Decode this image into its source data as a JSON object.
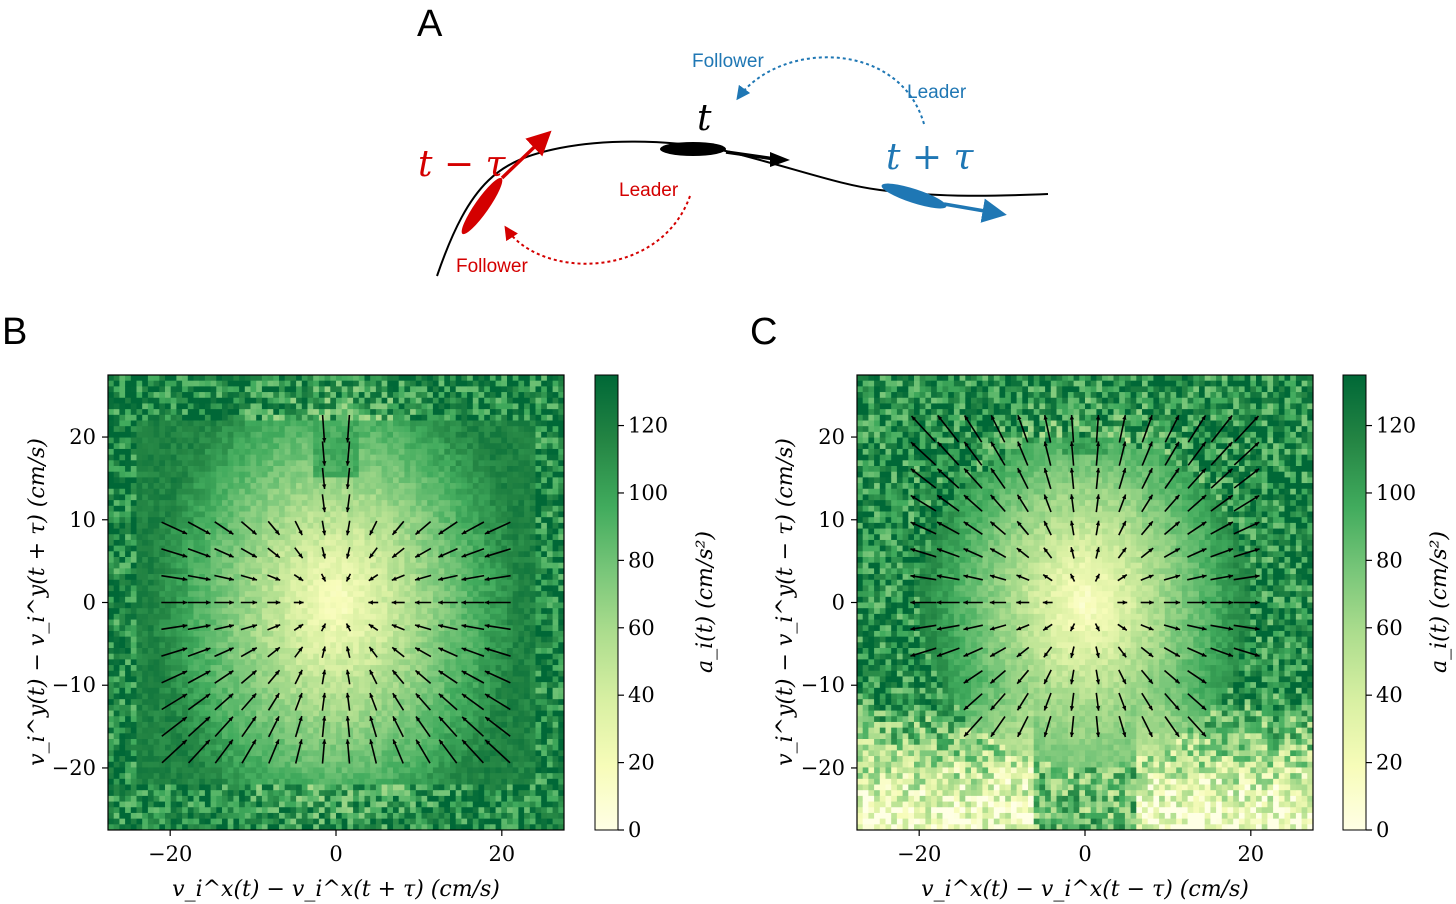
{
  "panel_a": {
    "letter": "A",
    "time_labels": {
      "past": "t − τ",
      "present": "t",
      "future": "t + τ"
    },
    "red_labels": {
      "leader": "Leader",
      "follower": "Follower"
    },
    "blue_labels": {
      "leader": "Leader",
      "follower": "Follower"
    },
    "colors": {
      "past": "#d40000",
      "present": "#000000",
      "future": "#1f77b4"
    }
  },
  "colorbar_ticks": [
    "0",
    "20",
    "40",
    "60",
    "80",
    "100",
    "120"
  ],
  "colormap": [
    "#ffffe5",
    "#f7fcb9",
    "#d9f0a3",
    "#addd8e",
    "#78c679",
    "#41ab5d",
    "#238443",
    "#006837"
  ],
  "chart_data": [
    {
      "type": "heatmap",
      "letter": "B",
      "xlabel": "v_i^x(t) − v_i^x(t + τ) (cm/s)",
      "ylabel": "v_i^y(t) − v_i^y(t + τ) (cm/s)",
      "colorbar_label": "a_i(t) (cm/s²)",
      "xlim": [
        -27.5,
        27.5
      ],
      "ylim": [
        -27.5,
        27.5
      ],
      "xticks": [
        -20,
        0,
        20
      ],
      "yticks": [
        -20,
        -10,
        0,
        10,
        20
      ],
      "tick_labels_x": [
        "−20",
        "0",
        "20"
      ],
      "tick_labels_y": [
        "−20",
        "−10",
        "0",
        "10",
        "20"
      ],
      "color_range": [
        0,
        135
      ],
      "pattern": "convergent",
      "description_values": {
        "center_magnitude": 5,
        "edge_magnitude": 130
      }
    },
    {
      "type": "heatmap",
      "letter": "C",
      "xlabel": "v_i^x(t) − v_i^x(t − τ) (cm/s)",
      "ylabel": "v_i^y(t) − v_i^y(t − τ) (cm/s)",
      "colorbar_label": "a_i(t) (cm/s²)",
      "xlim": [
        -27.5,
        27.5
      ],
      "ylim": [
        -27.5,
        27.5
      ],
      "xticks": [
        -20,
        0,
        20
      ],
      "yticks": [
        -20,
        -10,
        0,
        10,
        20
      ],
      "tick_labels_x": [
        "−20",
        "0",
        "20"
      ],
      "tick_labels_y": [
        "−20",
        "−10",
        "0",
        "10",
        "20"
      ],
      "color_range": [
        0,
        135
      ],
      "pattern": "divergent",
      "description_values": {
        "center_magnitude": 5,
        "edge_magnitude": 130
      }
    }
  ]
}
